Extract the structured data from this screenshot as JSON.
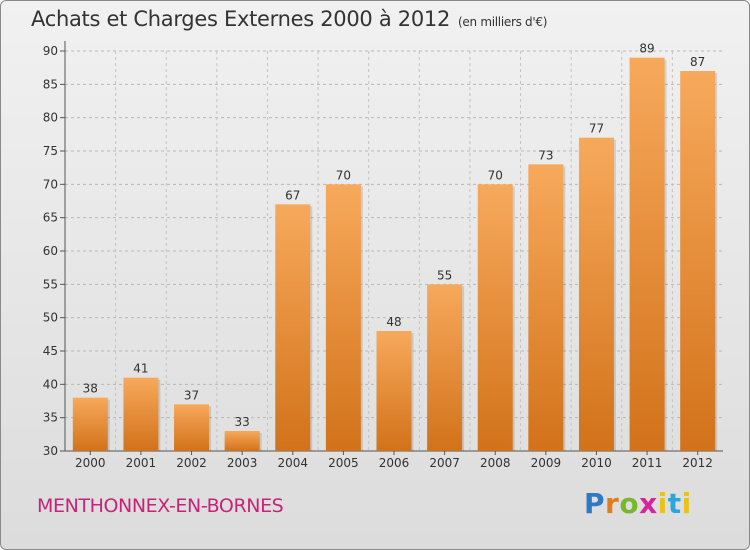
{
  "title": "Achats et Charges Externes 2000 à 2012",
  "subtitle": "(en milliers d'€)",
  "commune": "MENTHONNEX-EN-BORNES",
  "brand": {
    "letters": [
      "P",
      "r",
      "o",
      "x",
      "i",
      "t",
      "i"
    ],
    "colors": [
      "#2f78c4",
      "#e27d1e",
      "#76b82a",
      "#d6249a",
      "#e8c319",
      "#2aa7d6",
      "#e8c319"
    ]
  },
  "colors": {
    "bar_light": "#f7a95b",
    "bar_dark": "#d2721a",
    "title": "#333333",
    "commune": "#c8237a"
  },
  "chart_data": {
    "type": "bar",
    "categories": [
      "2000",
      "2001",
      "2002",
      "2003",
      "2004",
      "2005",
      "2006",
      "2007",
      "2008",
      "2009",
      "2010",
      "2011",
      "2012"
    ],
    "values": [
      38,
      41,
      37,
      33,
      67,
      70,
      48,
      55,
      70,
      73,
      77,
      89,
      87
    ],
    "yticks": [
      30,
      35,
      40,
      45,
      50,
      55,
      60,
      65,
      70,
      75,
      80,
      85,
      90
    ],
    "ylim": [
      30,
      90
    ],
    "grid": true,
    "data_labels": true
  }
}
